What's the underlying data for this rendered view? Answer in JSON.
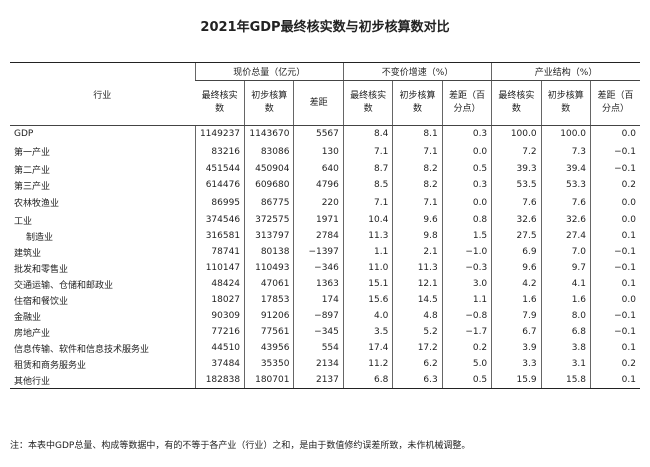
{
  "title": "2021年GDP最终核实数与初步核算数对比",
  "header": {
    "industry": "行业",
    "groups": [
      "现价总量（亿元）",
      "不变价增速（%）",
      "产业结构（%）"
    ],
    "subheaders": [
      "最终核实数",
      "初步核算数",
      "差距",
      "最终核实数",
      "初步核算数",
      "差距（百分点）",
      "最终核实数",
      "初步核算数",
      "差距（百分点）"
    ]
  },
  "sections": [
    [
      [
        "GDP",
        "1149237",
        "1143670",
        "5567",
        "8.4",
        "8.1",
        "0.3",
        "100.0",
        "100.0",
        "0.0"
      ]
    ],
    [
      [
        "第一产业",
        "83216",
        "83086",
        "130",
        "7.1",
        "7.1",
        "0.0",
        "7.2",
        "7.3",
        "−0.1"
      ],
      [
        "第二产业",
        "451544",
        "450904",
        "640",
        "8.7",
        "8.2",
        "0.5",
        "39.3",
        "39.4",
        "−0.1"
      ],
      [
        "第三产业",
        "614476",
        "609680",
        "4796",
        "8.5",
        "8.2",
        "0.3",
        "53.5",
        "53.3",
        "0.2"
      ]
    ],
    [
      [
        "农林牧渔业",
        "86995",
        "86775",
        "220",
        "7.1",
        "7.1",
        "0.0",
        "7.6",
        "7.6",
        "0.0"
      ],
      [
        "工业",
        "374546",
        "372575",
        "1971",
        "10.4",
        "9.6",
        "0.8",
        "32.6",
        "32.6",
        "0.0"
      ],
      [
        "制造业",
        "316581",
        "313797",
        "2784",
        "11.3",
        "9.8",
        "1.5",
        "27.5",
        "27.4",
        "0.1"
      ],
      [
        "建筑业",
        "78741",
        "80138",
        "−1397",
        "1.1",
        "2.1",
        "−1.0",
        "6.9",
        "7.0",
        "−0.1"
      ],
      [
        "批发和零售业",
        "110147",
        "110493",
        "−346",
        "11.0",
        "11.3",
        "−0.3",
        "9.6",
        "9.7",
        "−0.1"
      ],
      [
        "交通运输、仓储和邮政业",
        "48424",
        "47061",
        "1363",
        "15.1",
        "12.1",
        "3.0",
        "4.2",
        "4.1",
        "0.1"
      ],
      [
        "住宿和餐饮业",
        "18027",
        "17853",
        "174",
        "15.6",
        "14.5",
        "1.1",
        "1.6",
        "1.6",
        "0.0"
      ],
      [
        "金融业",
        "90309",
        "91206",
        "−897",
        "4.0",
        "4.8",
        "−0.8",
        "7.9",
        "8.0",
        "−0.1"
      ],
      [
        "房地产业",
        "77216",
        "77561",
        "−345",
        "3.5",
        "5.2",
        "−1.7",
        "6.7",
        "6.8",
        "−0.1"
      ],
      [
        "信息传输、软件和信息技术服务业",
        "44510",
        "43956",
        "554",
        "17.4",
        "17.2",
        "0.2",
        "3.9",
        "3.8",
        "0.1"
      ],
      [
        "租赁和商务服务业",
        "37484",
        "35350",
        "2134",
        "11.2",
        "6.2",
        "5.0",
        "3.3",
        "3.1",
        "0.2"
      ],
      [
        "其他行业",
        "182838",
        "180701",
        "2137",
        "6.8",
        "6.3",
        "0.5",
        "15.9",
        "15.8",
        "0.1"
      ]
    ]
  ],
  "note": "注：本表中GDP总量、构成等数据中，有的不等于各产业（行业）之和，是由于数值修约误差所致，未作机械调整。"
}
